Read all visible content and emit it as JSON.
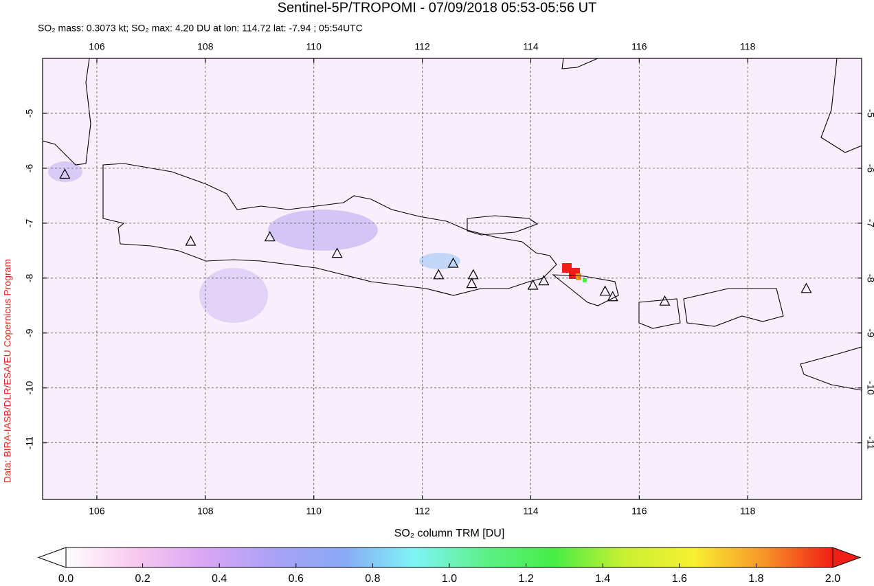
{
  "chart_data": {
    "type": "map",
    "title": "Sentinel-5P/TROPOMI - 07/09/2018 05:53-05:56 UT",
    "subtitle": "SO₂ mass: 0.3073 kt; SO₂ max: 4.20 DU at lon: 114.72 lat: -7.94 ; 05:54UTC",
    "credit": "Data: BIRA-IASB/DLR/ESA/EU Copernicus Program",
    "xlim": [
      105,
      120.1
    ],
    "ylim": [
      -12.03,
      -4
    ],
    "xticks": [
      106,
      108,
      110,
      112,
      114,
      116,
      118
    ],
    "yticks": [
      -5,
      -6,
      -7,
      -8,
      -9,
      -10,
      -11
    ],
    "grid": true,
    "volcanoes": {
      "x": [
        105.41,
        107.73,
        109.19,
        110.43,
        112.3,
        112.57,
        112.94,
        112.91,
        114.04,
        114.24,
        115.37,
        115.51,
        116.47,
        119.08
      ],
      "y": [
        -6.12,
        -7.34,
        -7.26,
        -7.56,
        -7.95,
        -7.74,
        -7.95,
        -8.11,
        -8.14,
        -8.06,
        -8.25,
        -8.35,
        -8.43,
        -8.2
      ]
    },
    "colorbar": {
      "label": "SO₂ column TRM [DU]",
      "lim": [
        0,
        2
      ],
      "colors": [
        "#ffffff",
        "#f8c8ee",
        "#d9a6f5",
        "#a9a2f6",
        "#8aaaf6",
        "#7ef4f6",
        "#5ef08a",
        "#46ee46",
        "#c8f032",
        "#f8f032",
        "#f89628",
        "#f01e14"
      ],
      "ticks": [
        {
          "value": 0,
          "label": "0.0"
        },
        {
          "value": 0.2,
          "label": "0.2"
        },
        {
          "value": 0.4,
          "label": "0.4"
        },
        {
          "value": 0.6,
          "label": "0.6"
        },
        {
          "value": 0.8,
          "label": "0.8"
        },
        {
          "value": 1,
          "label": "1.0"
        },
        {
          "value": 1.2,
          "label": "1.2"
        },
        {
          "value": 1.4,
          "label": "1.4"
        },
        {
          "value": 1.6,
          "label": "1.6"
        },
        {
          "value": 1.8,
          "label": "1.8"
        },
        {
          "value": 2,
          "label": "2.0"
        }
      ]
    }
  }
}
